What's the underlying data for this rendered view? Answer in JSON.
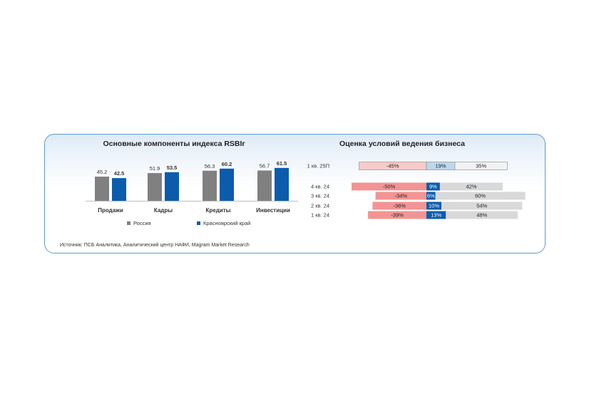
{
  "left_chart": {
    "title": "Основные компоненты индекса RSBIr",
    "legend": [
      {
        "label": "Россия",
        "color": "#808080"
      },
      {
        "label": "Красноярский край",
        "color": "#0b5cad"
      }
    ]
  },
  "right_chart": {
    "title": "Оценка условий ведения бизнеса"
  },
  "source": "Источник: ПСБ Аналитика, Аналитический центр НАФИ, Magram Market Research",
  "chart_data": [
    {
      "type": "bar",
      "title": "Основные компоненты индекса RSBIr",
      "categories": [
        "Продажи",
        "Кадры",
        "Кредиты",
        "Инвестиции"
      ],
      "series": [
        {
          "name": "Россия",
          "values": [
            45.2,
            51.9,
            56.3,
            56.7
          ],
          "color": "#808080"
        },
        {
          "name": "Красноярский край",
          "values": [
            42.5,
            53.5,
            60.2,
            61.5
          ],
          "color": "#0b5cad"
        }
      ]
    },
    {
      "type": "bar",
      "orientation": "horizontal-diverging",
      "title": "Оценка условий ведения бизнеса",
      "categories": [
        "1 кв. 25П",
        "4 кв. 24",
        "3 кв. 24",
        "2 кв. 24",
        "1 кв. 24"
      ],
      "negative": {
        "values": [
          -45,
          -50,
          -34,
          -36,
          -39
        ],
        "labels": [
          "-45%",
          "-50%",
          "-34%",
          "-36%",
          "-39%"
        ]
      },
      "positive": {
        "values": [
          19,
          9,
          6,
          10,
          13
        ],
        "labels": [
          "19%",
          "9%",
          "6%",
          "10%",
          "13%"
        ]
      },
      "neutral": {
        "values": [
          35,
          42,
          60,
          54,
          48
        ],
        "labels": [
          "35%",
          "42%",
          "60%",
          "54%",
          "48%"
        ]
      }
    }
  ]
}
